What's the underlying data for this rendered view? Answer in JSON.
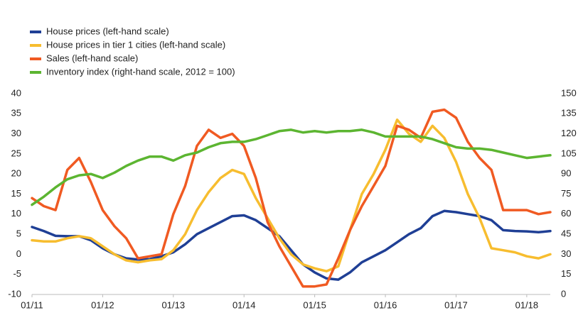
{
  "chart_data": {
    "type": "line",
    "categories": [
      "01/11",
      null,
      null,
      null,
      null,
      null,
      "01/12",
      null,
      null,
      null,
      null,
      null,
      "01/13",
      null,
      null,
      null,
      null,
      null,
      "01/14",
      null,
      null,
      null,
      null,
      null,
      "01/15",
      null,
      null,
      null,
      null,
      null,
      "01/16",
      null,
      null,
      null,
      null,
      null,
      "01/17",
      null,
      null,
      null,
      null,
      null,
      "01/18",
      null,
      null
    ],
    "series": [
      {
        "name": "House prices (left-hand scale)",
        "color": "#1f3f95",
        "values": [
          6.8,
          5.8,
          4.6,
          4.5,
          4.5,
          3.5,
          1.5,
          0,
          -1,
          -1.3,
          -1.2,
          -0.5,
          0.5,
          2.5,
          5,
          6.5,
          8,
          9.5,
          9.7,
          8.5,
          6.5,
          4.5,
          1,
          -2.5,
          -4.5,
          -6,
          -6.3,
          -4.5,
          -2,
          -0.5,
          1,
          3,
          5,
          6.5,
          9.5,
          10.8,
          10.5,
          10,
          9.5,
          8.5,
          6,
          5.8,
          5.7,
          5.5,
          5.8
        ]
      },
      {
        "name": "House prices in tier 1 cities (left-hand scale)",
        "color": "#f7bd2f",
        "values": [
          3.5,
          3.2,
          3.2,
          4,
          4.5,
          4,
          2,
          0,
          -1.5,
          -2,
          -1.5,
          -1.2,
          1,
          5,
          11,
          15.5,
          19,
          21,
          20,
          14,
          9,
          4,
          0,
          -2.5,
          -3.5,
          -4.2,
          -3,
          6,
          15,
          20,
          26,
          33.5,
          30,
          28,
          32,
          29,
          23,
          15,
          9,
          1.5,
          1,
          0.5,
          -0.5,
          -1,
          0
        ]
      },
      {
        "name": "Sales (left-hand scale)",
        "color": "#f05a22",
        "values": [
          14,
          12,
          11,
          21,
          24,
          18,
          11,
          7,
          4,
          -1,
          -0.5,
          0,
          10,
          17,
          27,
          31,
          29,
          30,
          27,
          19,
          8,
          2,
          -3,
          -8,
          -8,
          -7.5,
          -1,
          6,
          12,
          17,
          22,
          32,
          31,
          29,
          35.5,
          36,
          34,
          28,
          24,
          21,
          11,
          11,
          11,
          10,
          10.5
        ]
      },
      {
        "name": "Inventory index (right-hand scale, 2012 = 100)",
        "color": "#5cb531",
        "axis": "y2",
        "values": [
          67,
          73,
          80,
          86,
          89,
          90,
          87,
          91,
          96,
          100,
          103,
          103,
          100,
          104,
          106,
          110,
          113,
          114,
          114,
          116,
          119,
          122,
          123,
          121,
          122,
          121,
          122,
          122,
          123,
          121,
          118,
          118,
          118,
          118,
          116,
          113,
          110,
          109,
          109,
          108,
          106,
          104,
          102,
          103,
          104
        ]
      }
    ],
    "ylim": [
      -10,
      40
    ],
    "yticks": [
      -10,
      -5,
      0,
      5,
      10,
      15,
      20,
      25,
      30,
      35,
      40
    ],
    "y2lim": [
      0,
      150
    ],
    "y2ticks": [
      0,
      15,
      30,
      45,
      60,
      75,
      90,
      105,
      120,
      135,
      150
    ]
  }
}
